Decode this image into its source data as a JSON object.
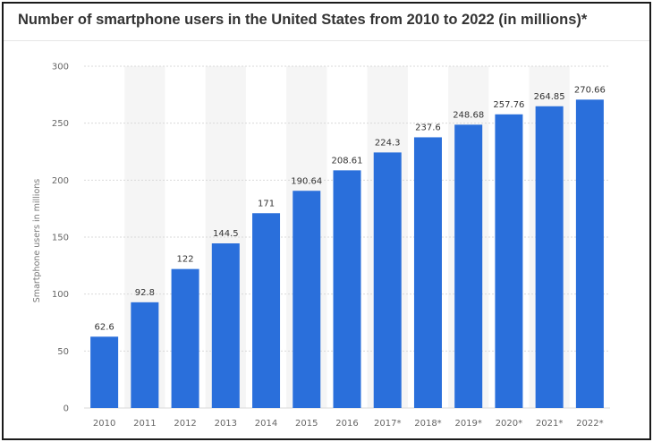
{
  "title": "Number of smartphone users in the United States from 2010 to 2022 (in millions)*",
  "chart_data": {
    "type": "bar",
    "title": "Number of smartphone users in the United States from 2010 to 2022 (in millions)*",
    "xlabel": "",
    "ylabel": "Smartphone users in millions",
    "ylim": [
      0,
      300
    ],
    "yticks": [
      0,
      50,
      100,
      150,
      200,
      250,
      300
    ],
    "grid": true,
    "categories": [
      "2010",
      "2011",
      "2012",
      "2013",
      "2014",
      "2015",
      "2016",
      "2017*",
      "2018*",
      "2019*",
      "2020*",
      "2021*",
      "2022*"
    ],
    "values": [
      62.6,
      92.8,
      122,
      144.5,
      171,
      190.64,
      208.61,
      224.3,
      237.6,
      248.68,
      257.76,
      264.85,
      270.66
    ],
    "value_labels": [
      "62.6",
      "92.8",
      "122",
      "144.5",
      "171",
      "190.64",
      "208.61",
      "224.3",
      "237.6",
      "248.68",
      "257.76",
      "264.85",
      "270.66"
    ],
    "colors": {
      "bar": "#2a6fdb",
      "band": "#f5f5f5",
      "grid": "#d9d9d9"
    }
  }
}
